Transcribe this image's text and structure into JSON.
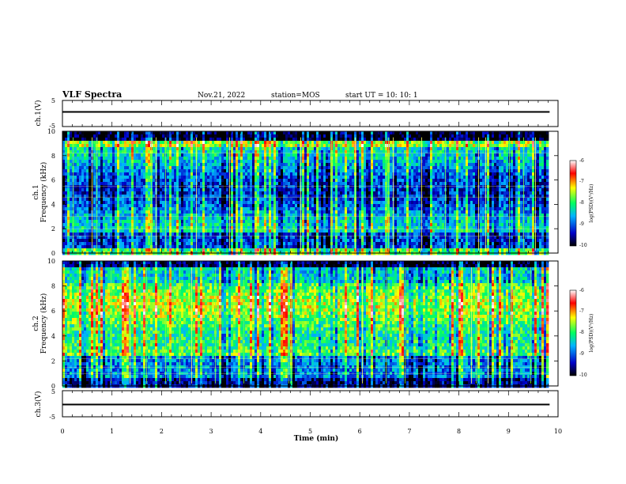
{
  "header": {
    "title": "VLF Spectra",
    "date": "Nov.21, 2022",
    "station": "station=MOS",
    "start": "start  UT =   10: 10: 1"
  },
  "chart_data": [
    {
      "type": "line",
      "panel": "ch1-waveform",
      "ylabel": "ch.1(V)",
      "ylim": [
        -5,
        5
      ],
      "yticks": [
        "5",
        "-5"
      ],
      "x": [
        0,
        9.83
      ],
      "values": [
        0.0,
        0.0
      ]
    },
    {
      "type": "heatmap",
      "panel": "ch1-spectrogram",
      "ylabel": "ch.1\nFrequency (kHz)",
      "ylim": [
        0,
        10
      ],
      "yticks": [
        "0",
        "2",
        "4",
        "6",
        "8",
        "10"
      ],
      "xlim": [
        0,
        10
      ],
      "colorbar": {
        "label": "log(PSD)(V²/Hz)",
        "range": [
          -10,
          -6
        ],
        "ticks": [
          "-6",
          "-7",
          "-8",
          "-9",
          "-10"
        ]
      }
    },
    {
      "type": "heatmap",
      "panel": "ch2-spectrogram",
      "ylabel": "ch.2\nFrequency (kHz)",
      "ylim": [
        0,
        10
      ],
      "yticks": [
        "0",
        "2",
        "4",
        "6",
        "8",
        "10"
      ],
      "xlim": [
        0,
        10
      ],
      "colorbar": {
        "label": "log(PSD)(V²/Hz)",
        "range": [
          -10,
          -6
        ],
        "ticks": [
          "-6",
          "-7",
          "-8",
          "-9",
          "-10"
        ]
      }
    },
    {
      "type": "line",
      "panel": "ch3-waveform",
      "ylabel": "ch.3(V)",
      "ylim": [
        -5,
        5
      ],
      "yticks": [
        "5",
        "-5"
      ],
      "x": [
        0,
        9.83
      ],
      "values": [
        0.0,
        0.0
      ]
    }
  ],
  "xaxis": {
    "label": "Time (min)",
    "ticks": [
      "0",
      "1",
      "2",
      "3",
      "4",
      "5",
      "6",
      "7",
      "8",
      "9",
      "10"
    ],
    "range": [
      0,
      10
    ]
  },
  "colors": {
    "colormap": [
      "#000000",
      "#0000ff",
      "#00c8ff",
      "#00ff60",
      "#ffff00",
      "#ff0000",
      "#ffffff"
    ]
  }
}
